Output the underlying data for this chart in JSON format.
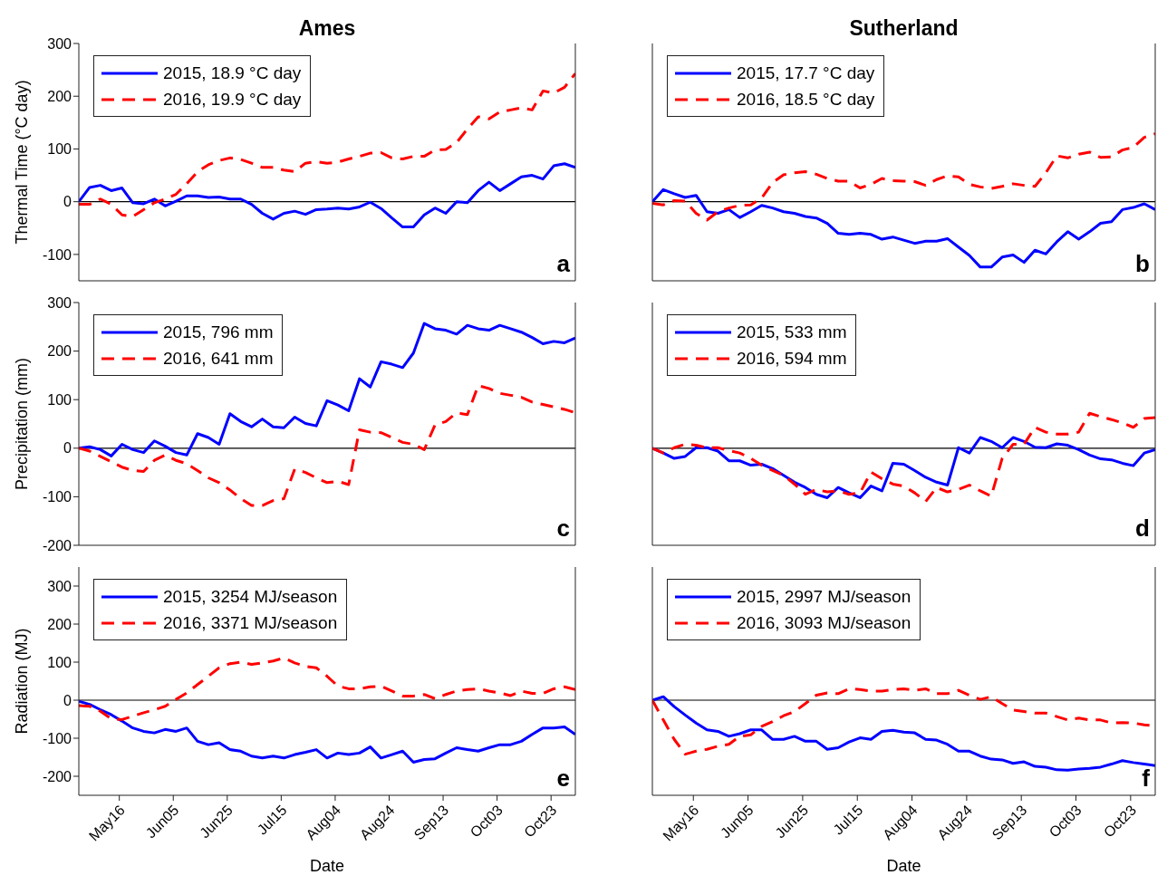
{
  "chart_data": [
    {
      "type": "line",
      "title": "Ames",
      "ylabel": "Thermal Time (°C day)",
      "annotations": [
        "a"
      ],
      "legend": "top left",
      "tick_labels": "y",
      "x": [
        "--05-01",
        "--05-05",
        "--05-09",
        "--05-13",
        "--05-17",
        "--05-21",
        "--05-25",
        "--05-29",
        "--06-02",
        "--06-06",
        "--06-10",
        "--06-14",
        "--06-18",
        "--06-22",
        "--06-26",
        "--06-30",
        "--07-04",
        "--07-08",
        "--07-12",
        "--07-16",
        "--07-20",
        "--07-24",
        "--07-28",
        "--08-01",
        "--08-05",
        "--08-09",
        "--08-13",
        "--08-17",
        "--08-21",
        "--08-25",
        "--08-29",
        "--09-02",
        "--09-06",
        "--09-10",
        "--09-14",
        "--09-18",
        "--09-22",
        "--09-26",
        "--09-30",
        "--10-04",
        "--10-08",
        "--10-12",
        "--10-16",
        "--10-20",
        "--10-24",
        "--10-28",
        "--11-01"
      ],
      "xlim": [
        "--05-01",
        "--11-01"
      ],
      "xticks": [
        {
          "value": "--05-16",
          "label": null
        },
        {
          "value": "--06-05",
          "label": null
        },
        {
          "value": "--06-25",
          "label": null
        },
        {
          "value": "--07-15",
          "label": null
        },
        {
          "value": "--08-04",
          "label": null
        },
        {
          "value": "--08-24",
          "label": null
        },
        {
          "value": "--09-13",
          "label": null
        },
        {
          "value": "--10-03",
          "label": null
        },
        {
          "value": "--10-23",
          "label": null
        }
      ],
      "ylim": [
        -150,
        300
      ],
      "yticks": [
        -100,
        0,
        100,
        200,
        300
      ],
      "ref_lines": [
        {
          "axis": "y",
          "value": 0,
          "color": "#000000"
        }
      ],
      "series": [
        {
          "name": "2015, 18.9 °C day",
          "color": "#0000ff",
          "line_style": "solid",
          "values": [
            0,
            27,
            31,
            21,
            26,
            -2,
            -4,
            5,
            -8,
            1,
            11,
            11,
            8,
            9,
            5,
            5,
            -5,
            -22,
            -33,
            -22,
            -18,
            -24,
            -15,
            -14,
            -12,
            -14,
            -10,
            -1,
            -13,
            -31,
            -48,
            -48,
            -25,
            -12,
            -22,
            0,
            -2,
            21,
            37,
            21,
            34,
            47,
            50,
            43,
            68,
            72,
            65
          ]
        },
        {
          "name": "2016, 19.9 °C day",
          "color": "#ff0000",
          "line_style": "dashed",
          "values": [
            -5,
            -5,
            5,
            -5,
            -25,
            -28,
            -15,
            -2,
            5,
            14,
            34,
            57,
            70,
            78,
            83,
            80,
            73,
            65,
            65,
            60,
            57,
            73,
            76,
            73,
            75,
            81,
            86,
            92,
            93,
            83,
            81,
            86,
            86,
            98,
            99,
            112,
            138,
            161,
            157,
            170,
            174,
            178,
            174,
            210,
            206,
            217,
            243
          ]
        }
      ]
    },
    {
      "type": "line",
      "title": "Sutherland",
      "annotations": [
        "b"
      ],
      "legend": "top left",
      "tick_labels": false,
      "x": [
        "--05-01",
        "--05-05",
        "--05-09",
        "--05-13",
        "--05-17",
        "--05-21",
        "--05-25",
        "--05-29",
        "--06-02",
        "--06-06",
        "--06-10",
        "--06-14",
        "--06-18",
        "--06-22",
        "--06-26",
        "--06-30",
        "--07-04",
        "--07-08",
        "--07-12",
        "--07-16",
        "--07-20",
        "--07-24",
        "--07-28",
        "--08-01",
        "--08-05",
        "--08-09",
        "--08-13",
        "--08-17",
        "--08-21",
        "--08-25",
        "--08-29",
        "--09-02",
        "--09-06",
        "--09-10",
        "--09-14",
        "--09-18",
        "--09-22",
        "--09-26",
        "--09-30",
        "--10-04",
        "--10-08",
        "--10-12",
        "--10-16",
        "--10-20",
        "--10-24",
        "--10-28",
        "--11-01"
      ],
      "xlim": [
        "--05-01",
        "--11-01"
      ],
      "xticks": [
        {
          "value": "--05-16",
          "label": null
        },
        {
          "value": "--06-05",
          "label": null
        },
        {
          "value": "--06-25",
          "label": null
        },
        {
          "value": "--07-15",
          "label": null
        },
        {
          "value": "--08-04",
          "label": null
        },
        {
          "value": "--08-24",
          "label": null
        },
        {
          "value": "--09-13",
          "label": null
        },
        {
          "value": "--10-03",
          "label": null
        },
        {
          "value": "--10-23",
          "label": null
        }
      ],
      "ylim": [
        -150,
        300
      ],
      "yticks": [
        -100,
        0,
        100,
        200,
        300
      ],
      "ref_lines": [
        {
          "axis": "y",
          "value": 0,
          "color": "#000000"
        }
      ],
      "series": [
        {
          "name": "2015, 17.7 °C day",
          "color": "#0000ff",
          "line_style": "solid",
          "values": [
            0,
            23,
            15,
            8,
            12,
            -19,
            -22,
            -15,
            -30,
            -19,
            -7,
            -12,
            -19,
            -22,
            -28,
            -31,
            -41,
            -60,
            -62,
            -60,
            -62,
            -71,
            -67,
            -73,
            -79,
            -75,
            -75,
            -70,
            -86,
            -102,
            -124,
            -124,
            -105,
            -101,
            -115,
            -92,
            -99,
            -76,
            -57,
            -71,
            -57,
            -41,
            -38,
            -15,
            -11,
            -4,
            -15
          ]
        },
        {
          "name": "2016, 18.5 °C day",
          "color": "#ff0000",
          "line_style": "dashed",
          "values": [
            -3,
            -6,
            2,
            1,
            -22,
            -35,
            -19,
            -12,
            -7,
            -6,
            7,
            36,
            51,
            55,
            57,
            52,
            44,
            39,
            39,
            26,
            33,
            44,
            40,
            39,
            38,
            31,
            42,
            49,
            47,
            33,
            28,
            25,
            29,
            34,
            31,
            29,
            55,
            87,
            83,
            90,
            94,
            84,
            85,
            98,
            103,
            122,
            129
          ]
        }
      ]
    },
    {
      "type": "line",
      "ylabel": "Precipitation (mm)",
      "annotations": [
        "c"
      ],
      "legend": "top left",
      "tick_labels": "y",
      "x": [
        "--05-01",
        "--05-05",
        "--05-09",
        "--05-13",
        "--05-17",
        "--05-21",
        "--05-25",
        "--05-29",
        "--06-02",
        "--06-06",
        "--06-10",
        "--06-14",
        "--06-18",
        "--06-22",
        "--06-26",
        "--06-30",
        "--07-04",
        "--07-08",
        "--07-12",
        "--07-16",
        "--07-20",
        "--07-24",
        "--07-28",
        "--08-01",
        "--08-05",
        "--08-09",
        "--08-13",
        "--08-17",
        "--08-21",
        "--08-25",
        "--08-29",
        "--09-02",
        "--09-06",
        "--09-10",
        "--09-14",
        "--09-18",
        "--09-22",
        "--09-26",
        "--09-30",
        "--10-04",
        "--10-08",
        "--10-12",
        "--10-16",
        "--10-20",
        "--10-24",
        "--10-28",
        "--11-01"
      ],
      "xlim": [
        "--05-01",
        "--11-01"
      ],
      "xticks": [
        {
          "value": "--05-16",
          "label": null
        },
        {
          "value": "--06-05",
          "label": null
        },
        {
          "value": "--06-25",
          "label": null
        },
        {
          "value": "--07-15",
          "label": null
        },
        {
          "value": "--08-04",
          "label": null
        },
        {
          "value": "--08-24",
          "label": null
        },
        {
          "value": "--09-13",
          "label": null
        },
        {
          "value": "--10-03",
          "label": null
        },
        {
          "value": "--10-23",
          "label": null
        }
      ],
      "ylim": [
        -200,
        300
      ],
      "yticks": [
        -200,
        -100,
        0,
        100,
        200,
        300
      ],
      "ref_lines": [
        {
          "axis": "y",
          "value": 0,
          "color": "#000000"
        }
      ],
      "series": [
        {
          "name": "2015, 796 mm",
          "color": "#0000ff",
          "line_style": "solid",
          "values": [
            0,
            3,
            -3,
            -16,
            8,
            -3,
            -9,
            15,
            4,
            -9,
            -14,
            30,
            22,
            8,
            71,
            55,
            44,
            60,
            44,
            42,
            64,
            51,
            46,
            98,
            89,
            77,
            143,
            126,
            178,
            173,
            166,
            196,
            257,
            246,
            243,
            235,
            253,
            246,
            243,
            253,
            246,
            239,
            228,
            215,
            220,
            217,
            227
          ]
        },
        {
          "name": "2016, 641 mm",
          "color": "#ff0000",
          "line_style": "dashed",
          "values": [
            0,
            -6,
            -17,
            -28,
            -39,
            -46,
            -48,
            -25,
            -14,
            -25,
            -32,
            -46,
            -61,
            -71,
            -86,
            -104,
            -118,
            -118,
            -108,
            -104,
            -43,
            -50,
            -61,
            -71,
            -68,
            -75,
            38,
            33,
            32,
            22,
            12,
            8,
            -3,
            48,
            55,
            73,
            69,
            129,
            123,
            113,
            109,
            105,
            95,
            90,
            85,
            80,
            73
          ]
        }
      ]
    },
    {
      "type": "line",
      "annotations": [
        "d"
      ],
      "legend": "top left",
      "tick_labels": false,
      "x": [
        "--05-01",
        "--05-05",
        "--05-09",
        "--05-13",
        "--05-17",
        "--05-21",
        "--05-25",
        "--05-29",
        "--06-02",
        "--06-06",
        "--06-10",
        "--06-14",
        "--06-18",
        "--06-22",
        "--06-26",
        "--06-30",
        "--07-04",
        "--07-08",
        "--07-12",
        "--07-16",
        "--07-20",
        "--07-24",
        "--07-28",
        "--08-01",
        "--08-05",
        "--08-09",
        "--08-13",
        "--08-17",
        "--08-21",
        "--08-25",
        "--08-29",
        "--09-02",
        "--09-06",
        "--09-10",
        "--09-14",
        "--09-18",
        "--09-22",
        "--09-26",
        "--09-30",
        "--10-04",
        "--10-08",
        "--10-12",
        "--10-16",
        "--10-20",
        "--10-24",
        "--10-28",
        "--11-01"
      ],
      "xlim": [
        "--05-01",
        "--11-01"
      ],
      "xticks": [
        {
          "value": "--05-16",
          "label": null
        },
        {
          "value": "--06-05",
          "label": null
        },
        {
          "value": "--06-25",
          "label": null
        },
        {
          "value": "--07-15",
          "label": null
        },
        {
          "value": "--08-04",
          "label": null
        },
        {
          "value": "--08-24",
          "label": null
        },
        {
          "value": "--09-13",
          "label": null
        },
        {
          "value": "--10-03",
          "label": null
        },
        {
          "value": "--10-23",
          "label": null
        }
      ],
      "ylim": [
        -200,
        300
      ],
      "yticks": [
        -200,
        -100,
        0,
        100,
        200,
        300
      ],
      "ref_lines": [
        {
          "axis": "y",
          "value": 0,
          "color": "#000000"
        }
      ],
      "series": [
        {
          "name": "2015, 533 mm",
          "color": "#0000ff",
          "line_style": "solid",
          "values": [
            0,
            -10,
            -21,
            -17,
            1,
            1,
            -6,
            -26,
            -26,
            -35,
            -33,
            -42,
            -56,
            -70,
            -81,
            -95,
            -102,
            -81,
            -92,
            -102,
            -78,
            -88,
            -31,
            -33,
            -46,
            -60,
            -70,
            -76,
            1,
            -10,
            22,
            14,
            1,
            22,
            14,
            2,
            1,
            9,
            6,
            -3,
            -14,
            -22,
            -24,
            -31,
            -36,
            -10,
            -3
          ]
        },
        {
          "name": "2016, 594 mm",
          "color": "#ff0000",
          "line_style": "dashed",
          "values": [
            0,
            -10,
            1,
            8,
            6,
            1,
            1,
            -5,
            -10,
            -21,
            -35,
            -46,
            -56,
            -74,
            -95,
            -85,
            -90,
            -88,
            -95,
            -92,
            -49,
            -63,
            -74,
            -78,
            -92,
            -110,
            -81,
            -90,
            -85,
            -76,
            -88,
            -99,
            -21,
            8,
            8,
            43,
            33,
            29,
            29,
            33,
            72,
            65,
            59,
            52,
            43,
            61,
            63
          ]
        }
      ]
    },
    {
      "type": "line",
      "ylabel": "Radiation (MJ)",
      "xlabel": "Date",
      "annotations": [
        "e"
      ],
      "legend": "top left",
      "x": [
        "--05-01",
        "--05-05",
        "--05-09",
        "--05-13",
        "--05-17",
        "--05-21",
        "--05-25",
        "--05-29",
        "--06-02",
        "--06-06",
        "--06-10",
        "--06-14",
        "--06-18",
        "--06-22",
        "--06-26",
        "--06-30",
        "--07-04",
        "--07-08",
        "--07-12",
        "--07-16",
        "--07-20",
        "--07-24",
        "--07-28",
        "--08-01",
        "--08-05",
        "--08-09",
        "--08-13",
        "--08-17",
        "--08-21",
        "--08-25",
        "--08-29",
        "--09-02",
        "--09-06",
        "--09-10",
        "--09-14",
        "--09-18",
        "--09-22",
        "--09-26",
        "--09-30",
        "--10-04",
        "--10-08",
        "--10-12",
        "--10-16",
        "--10-20",
        "--10-24",
        "--10-28",
        "--11-01"
      ],
      "xlim": [
        "--05-01",
        "--11-01"
      ],
      "xticks": [
        {
          "value": "--05-16",
          "label": "May16"
        },
        {
          "value": "--06-05",
          "label": "Jun05"
        },
        {
          "value": "--06-25",
          "label": "Jun25"
        },
        {
          "value": "--07-15",
          "label": "Jul15"
        },
        {
          "value": "--08-04",
          "label": "Aug04"
        },
        {
          "value": "--08-24",
          "label": "Aug24"
        },
        {
          "value": "--09-13",
          "label": "Sep13"
        },
        {
          "value": "--10-03",
          "label": "Oct03"
        },
        {
          "value": "--10-23",
          "label": "Oct23"
        }
      ],
      "ylim": [
        -250,
        350
      ],
      "yticks": [
        -200,
        -100,
        0,
        100,
        200,
        300
      ],
      "ref_lines": [
        {
          "axis": "y",
          "value": 0,
          "color": "#000000"
        }
      ],
      "series": [
        {
          "name": "2015, 3254 MJ/season",
          "color": "#0000ff",
          "line_style": "solid",
          "values": [
            -3,
            -11,
            -25,
            -38,
            -55,
            -73,
            -82,
            -86,
            -77,
            -82,
            -73,
            -108,
            -117,
            -112,
            -130,
            -134,
            -147,
            -152,
            -147,
            -152,
            -143,
            -137,
            -130,
            -152,
            -139,
            -143,
            -139,
            -123,
            -152,
            -143,
            -134,
            -163,
            -156,
            -154,
            -139,
            -125,
            -130,
            -134,
            -125,
            -117,
            -117,
            -108,
            -90,
            -73,
            -73,
            -70,
            -90
          ]
        },
        {
          "name": "2016, 3371 MJ/season",
          "color": "#ff0000",
          "line_style": "dashed",
          "values": [
            -14,
            -16,
            -29,
            -49,
            -51,
            -42,
            -33,
            -25,
            -16,
            2,
            19,
            41,
            63,
            85,
            96,
            100,
            94,
            98,
            103,
            111,
            98,
            89,
            85,
            63,
            37,
            30,
            30,
            35,
            37,
            24,
            11,
            11,
            15,
            4,
            15,
            24,
            28,
            30,
            24,
            19,
            12,
            24,
            18,
            18,
            30,
            35,
            28
          ]
        }
      ]
    },
    {
      "type": "line",
      "xlabel": "Date",
      "annotations": [
        "f"
      ],
      "legend": "top left",
      "tick_labels": "x",
      "x": [
        "--05-01",
        "--05-05",
        "--05-09",
        "--05-13",
        "--05-17",
        "--05-21",
        "--05-25",
        "--05-29",
        "--06-02",
        "--06-06",
        "--06-10",
        "--06-14",
        "--06-18",
        "--06-22",
        "--06-26",
        "--06-30",
        "--07-04",
        "--07-08",
        "--07-12",
        "--07-16",
        "--07-20",
        "--07-24",
        "--07-28",
        "--08-01",
        "--08-05",
        "--08-09",
        "--08-13",
        "--08-17",
        "--08-21",
        "--08-25",
        "--08-29",
        "--09-02",
        "--09-06",
        "--09-10",
        "--09-14",
        "--09-18",
        "--09-22",
        "--09-26",
        "--09-30",
        "--10-04",
        "--10-08",
        "--10-12",
        "--10-16",
        "--10-20",
        "--10-24",
        "--10-28",
        "--11-01"
      ],
      "xlim": [
        "--05-01",
        "--11-01"
      ],
      "xticks": [
        {
          "value": "--05-16",
          "label": "May16"
        },
        {
          "value": "--06-05",
          "label": "Jun05"
        },
        {
          "value": "--06-25",
          "label": "Jun25"
        },
        {
          "value": "--07-15",
          "label": "Jul15"
        },
        {
          "value": "--08-04",
          "label": "Aug04"
        },
        {
          "value": "--08-24",
          "label": "Aug24"
        },
        {
          "value": "--09-13",
          "label": "Sep13"
        },
        {
          "value": "--10-03",
          "label": "Oct03"
        },
        {
          "value": "--10-23",
          "label": "Oct23"
        }
      ],
      "ylim": [
        -250,
        350
      ],
      "yticks": [
        -200,
        -100,
        0,
        100,
        200,
        300
      ],
      "ref_lines": [
        {
          "axis": "y",
          "value": 0,
          "color": "#000000"
        }
      ],
      "series": [
        {
          "name": "2015, 2997 MJ/season",
          "color": "#0000ff",
          "line_style": "solid",
          "values": [
            0,
            9,
            -17,
            -39,
            -60,
            -78,
            -82,
            -95,
            -88,
            -78,
            -78,
            -103,
            -103,
            -95,
            -108,
            -108,
            -129,
            -125,
            -110,
            -99,
            -103,
            -82,
            -79,
            -84,
            -86,
            -103,
            -105,
            -116,
            -134,
            -134,
            -147,
            -155,
            -157,
            -166,
            -162,
            -174,
            -176,
            -183,
            -184,
            -181,
            -179,
            -176,
            -168,
            -159,
            -164,
            -168,
            -172
          ]
        },
        {
          "name": "2016, 3093 MJ/season",
          "color": "#ff0000",
          "line_style": "dashed",
          "values": [
            0,
            -52,
            -103,
            -142,
            -134,
            -129,
            -121,
            -116,
            -95,
            -91,
            -69,
            -56,
            -41,
            -30,
            -9,
            13,
            19,
            17,
            30,
            28,
            24,
            24,
            28,
            30,
            26,
            30,
            17,
            17,
            26,
            13,
            2,
            9,
            -9,
            -26,
            -30,
            -34,
            -34,
            -43,
            -52,
            -47,
            -52,
            -52,
            -60,
            -59,
            -60,
            -65,
            -67
          ]
        }
      ]
    }
  ]
}
